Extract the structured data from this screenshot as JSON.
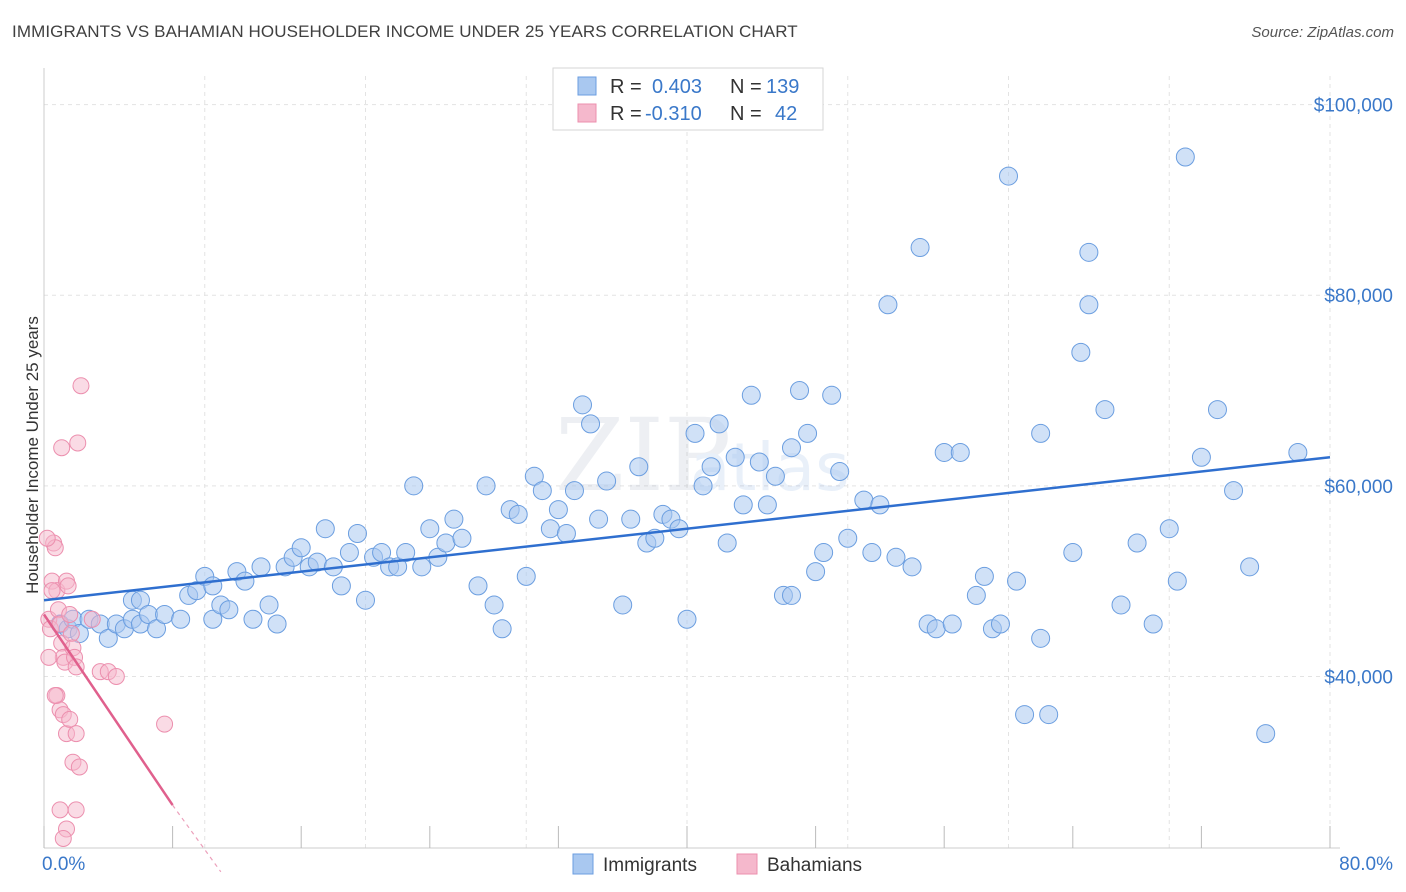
{
  "header": {
    "title": "IMMIGRANTS VS BAHAMIAN HOUSEHOLDER INCOME UNDER 25 YEARS CORRELATION CHART",
    "source_prefix": "Source: ",
    "source_site": "ZipAtlas.com"
  },
  "watermark": {
    "zip": "ZIP",
    "atlas": "atlas"
  },
  "legend": {
    "rows": [
      {
        "r_label": "R =",
        "r_value": "0.403",
        "n_label": "N =",
        "n_value": "139",
        "color": "#a9c8f0"
      },
      {
        "r_label": "R =",
        "r_value": "-0.310",
        "n_label": "N =",
        "n_value": "42",
        "color": "#f5b8cc"
      }
    ]
  },
  "bottom_legend": [
    {
      "label": "Immigrants",
      "color": "#a9c8f0"
    },
    {
      "label": "Bahamians",
      "color": "#f5b8cc"
    }
  ],
  "colors": {
    "immigrants_fill": "#a9c8f0",
    "immigrants_stroke": "#6b9ee0",
    "immigrants_line": "#2f6fcf",
    "bahamians_fill": "#f5b8cc",
    "bahamians_stroke": "#ec8fae",
    "bahamians_line": "#e0608d",
    "grid": "#e3e3e3",
    "tick_text": "#3a78c9"
  },
  "chart_data": {
    "type": "scatter",
    "title": "IMMIGRANTS VS BAHAMIAN HOUSEHOLDER INCOME UNDER 25 YEARS CORRELATION CHART",
    "xlabel": "",
    "ylabel": "Householder Income Under 25 years",
    "xlim": [
      0,
      80
    ],
    "ylim": [
      22000,
      103000
    ],
    "x_tick_labels": [
      "0.0%",
      "80.0%"
    ],
    "y_ticks": [
      40000,
      60000,
      80000,
      100000
    ],
    "y_tick_labels": [
      "$40,000",
      "$60,000",
      "$80,000",
      "$100,000"
    ],
    "grid": true,
    "legend_placement": "top-center",
    "series": [
      {
        "name": "Immigrants",
        "r": 0.403,
        "n": 139,
        "trend": {
          "x": [
            0,
            80
          ],
          "y": [
            48000,
            63000
          ]
        },
        "points": [
          [
            1.0,
            45500
          ],
          [
            1.5,
            45000
          ],
          [
            1.8,
            46000
          ],
          [
            2.2,
            44500
          ],
          [
            2.8,
            46000
          ],
          [
            3.5,
            45500
          ],
          [
            4.0,
            44000
          ],
          [
            4.5,
            45500
          ],
          [
            5.0,
            45000
          ],
          [
            5.5,
            46000
          ],
          [
            6.0,
            45500
          ],
          [
            5.5,
            48000
          ],
          [
            6.0,
            48000
          ],
          [
            6.5,
            46500
          ],
          [
            7.0,
            45000
          ],
          [
            7.5,
            46500
          ],
          [
            8.5,
            46000
          ],
          [
            9.0,
            48500
          ],
          [
            9.5,
            49000
          ],
          [
            10.0,
            50500
          ],
          [
            10.5,
            49500
          ],
          [
            10.5,
            46000
          ],
          [
            11.0,
            47500
          ],
          [
            11.5,
            47000
          ],
          [
            12.0,
            51000
          ],
          [
            12.5,
            50000
          ],
          [
            13.0,
            46000
          ],
          [
            13.5,
            51500
          ],
          [
            14.0,
            47500
          ],
          [
            14.5,
            45500
          ],
          [
            15.0,
            51500
          ],
          [
            15.5,
            52500
          ],
          [
            16.0,
            53500
          ],
          [
            16.5,
            51500
          ],
          [
            17.0,
            52000
          ],
          [
            17.5,
            55500
          ],
          [
            18.0,
            51500
          ],
          [
            18.5,
            49500
          ],
          [
            19.0,
            53000
          ],
          [
            19.5,
            55000
          ],
          [
            20.0,
            48000
          ],
          [
            20.5,
            52500
          ],
          [
            21.0,
            53000
          ],
          [
            21.5,
            51500
          ],
          [
            22.0,
            51500
          ],
          [
            22.5,
            53000
          ],
          [
            23.0,
            60000
          ],
          [
            23.5,
            51500
          ],
          [
            24.0,
            55500
          ],
          [
            24.5,
            52500
          ],
          [
            25.0,
            54000
          ],
          [
            25.5,
            56500
          ],
          [
            26.0,
            54500
          ],
          [
            27.0,
            49500
          ],
          [
            27.5,
            60000
          ],
          [
            28.0,
            47500
          ],
          [
            28.5,
            45000
          ],
          [
            29.0,
            57500
          ],
          [
            29.5,
            57000
          ],
          [
            30.0,
            50500
          ],
          [
            30.5,
            61000
          ],
          [
            31.0,
            59500
          ],
          [
            31.5,
            55500
          ],
          [
            32.0,
            57500
          ],
          [
            32.5,
            55000
          ],
          [
            33.0,
            59500
          ],
          [
            33.5,
            68500
          ],
          [
            34.0,
            66500
          ],
          [
            34.5,
            56500
          ],
          [
            35.0,
            60500
          ],
          [
            36.0,
            47500
          ],
          [
            36.5,
            56500
          ],
          [
            37.0,
            62000
          ],
          [
            37.5,
            54000
          ],
          [
            38.0,
            54500
          ],
          [
            38.5,
            57000
          ],
          [
            39.0,
            56500
          ],
          [
            39.5,
            55500
          ],
          [
            40.0,
            46000
          ],
          [
            40.5,
            65500
          ],
          [
            41.0,
            60000
          ],
          [
            41.5,
            62000
          ],
          [
            42.0,
            66500
          ],
          [
            42.5,
            54000
          ],
          [
            43.0,
            63000
          ],
          [
            43.5,
            58000
          ],
          [
            44.0,
            69500
          ],
          [
            44.5,
            62500
          ],
          [
            45.0,
            58000
          ],
          [
            45.5,
            61000
          ],
          [
            46.0,
            48500
          ],
          [
            46.5,
            48500
          ],
          [
            47.0,
            70000
          ],
          [
            47.5,
            65500
          ],
          [
            48.0,
            51000
          ],
          [
            48.5,
            53000
          ],
          [
            49.0,
            69500
          ],
          [
            49.5,
            61500
          ],
          [
            50.0,
            54500
          ],
          [
            51.0,
            58500
          ],
          [
            51.5,
            53000
          ],
          [
            52.0,
            58000
          ],
          [
            52.5,
            79000
          ],
          [
            53.0,
            52500
          ],
          [
            54.0,
            51500
          ],
          [
            54.5,
            85000
          ],
          [
            55.0,
            45500
          ],
          [
            55.5,
            45000
          ],
          [
            56.0,
            63500
          ],
          [
            56.5,
            45500
          ],
          [
            57.0,
            63500
          ],
          [
            58.0,
            48500
          ],
          [
            58.5,
            50500
          ],
          [
            59.0,
            45000
          ],
          [
            59.5,
            45500
          ],
          [
            60.0,
            92500
          ],
          [
            60.5,
            50000
          ],
          [
            61.0,
            36000
          ],
          [
            62.0,
            65500
          ],
          [
            62.5,
            36000
          ],
          [
            62.0,
            44000
          ],
          [
            64.0,
            53000
          ],
          [
            64.5,
            74000
          ],
          [
            65.0,
            84500
          ],
          [
            65.0,
            79000
          ],
          [
            66.0,
            68000
          ],
          [
            67.0,
            47500
          ],
          [
            68.0,
            54000
          ],
          [
            69.0,
            45500
          ],
          [
            70.0,
            55500
          ],
          [
            70.5,
            50000
          ],
          [
            71.0,
            94500
          ],
          [
            72.0,
            63000
          ],
          [
            73.0,
            68000
          ],
          [
            74.0,
            59500
          ],
          [
            75.0,
            51500
          ],
          [
            76.0,
            34000
          ],
          [
            78.0,
            63500
          ],
          [
            46.5,
            64000
          ]
        ]
      },
      {
        "name": "Bahamians",
        "r": -0.31,
        "n": 42,
        "trend": {
          "x": [
            0,
            8
          ],
          "y": [
            46500,
            26500
          ]
        },
        "trend_dashed": {
          "x": [
            8,
            11
          ],
          "y": [
            26500,
            19500
          ]
        },
        "points": [
          [
            0.3,
            46000
          ],
          [
            0.4,
            45000
          ],
          [
            0.5,
            50000
          ],
          [
            0.6,
            54000
          ],
          [
            0.7,
            53500
          ],
          [
            0.8,
            49000
          ],
          [
            0.9,
            47000
          ],
          [
            1.0,
            45500
          ],
          [
            1.1,
            43500
          ],
          [
            1.2,
            42000
          ],
          [
            1.3,
            41500
          ],
          [
            1.4,
            50000
          ],
          [
            1.5,
            49500
          ],
          [
            1.6,
            46500
          ],
          [
            1.7,
            44500
          ],
          [
            1.8,
            43000
          ],
          [
            1.9,
            42000
          ],
          [
            2.0,
            41000
          ],
          [
            2.1,
            64500
          ],
          [
            2.3,
            70500
          ],
          [
            0.3,
            42000
          ],
          [
            0.5,
            49000
          ],
          [
            0.8,
            38000
          ],
          [
            1.0,
            36500
          ],
          [
            1.2,
            36000
          ],
          [
            1.4,
            34000
          ],
          [
            1.6,
            35500
          ],
          [
            1.8,
            31000
          ],
          [
            2.0,
            34000
          ],
          [
            2.2,
            30500
          ],
          [
            1.0,
            26000
          ],
          [
            1.4,
            24000
          ],
          [
            1.2,
            23000
          ],
          [
            2.0,
            26000
          ],
          [
            3.0,
            46000
          ],
          [
            3.5,
            40500
          ],
          [
            4.0,
            40500
          ],
          [
            4.5,
            40000
          ],
          [
            7.5,
            35000
          ],
          [
            0.7,
            38000
          ],
          [
            1.1,
            64000
          ],
          [
            0.2,
            54500
          ]
        ]
      }
    ]
  }
}
